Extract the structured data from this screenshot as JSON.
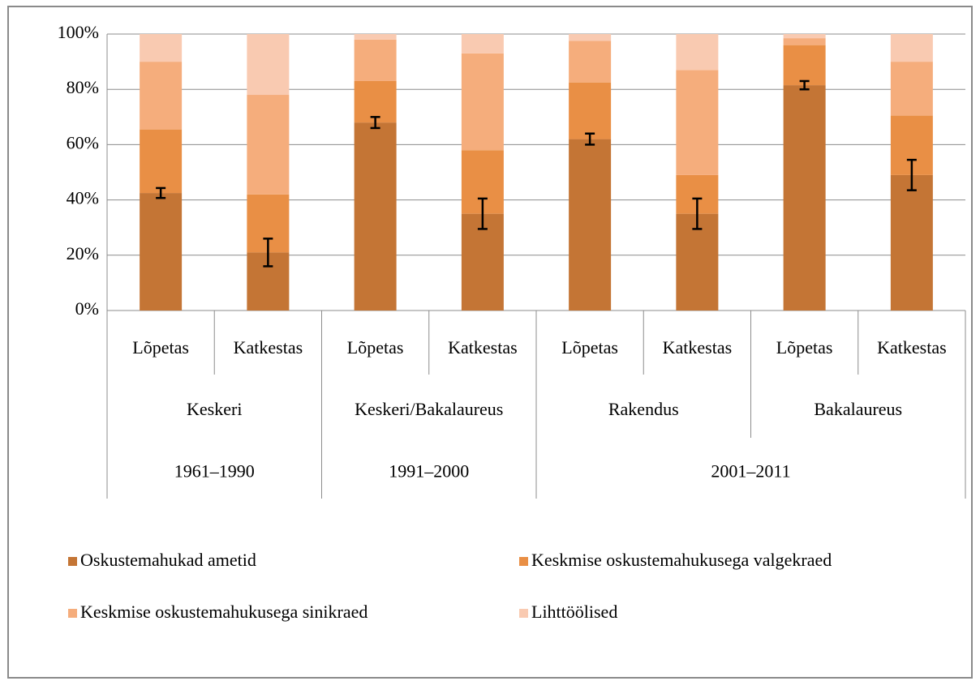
{
  "chart_data": {
    "type": "stacked_bar",
    "categories": [
      "Lõpetas",
      "Katkestas",
      "Lõpetas",
      "Katkestas",
      "Lõpetas",
      "Katkestas",
      "Lõpetas",
      "Katkestas"
    ],
    "groups": [
      [
        {
          "label": "Keskeri",
          "span": 2
        },
        {
          "label": "Keskeri/Bakalaureus",
          "span": 2
        },
        {
          "label": "Rakendus",
          "span": 2
        },
        {
          "label": "Bakalaureus",
          "span": 2
        }
      ],
      [
        {
          "label": "1961–1990",
          "span": 2
        },
        {
          "label": "1991–2000",
          "span": 2
        },
        {
          "label": "2001–2011",
          "span": 4
        }
      ]
    ],
    "series": [
      {
        "name": "Oskustemahukad ametid",
        "color": "#c47535",
        "values": [
          42.5,
          21,
          68,
          35,
          62,
          35,
          81.5,
          49
        ],
        "errors": [
          1.8,
          5,
          2,
          5.5,
          2,
          5.5,
          1.5,
          5.5
        ]
      },
      {
        "name": "Keskmise oskustemahukusega valgekraed",
        "color": "#e98f45",
        "values": [
          23,
          21,
          15,
          23,
          20.5,
          14,
          14.5,
          21.5
        ]
      },
      {
        "name": "Keskmise oskustemahukusega sinikraed",
        "color": "#f5ad7c",
        "values": [
          24.5,
          36,
          15,
          35,
          15,
          38,
          2.5,
          19.5
        ]
      },
      {
        "name": "Lihttöölised",
        "color": "#f9cab1",
        "values": [
          10,
          22,
          2,
          7,
          2.5,
          13,
          1.5,
          10
        ]
      }
    ],
    "ylim": [
      0,
      100
    ],
    "yticks": [
      {
        "value": 0,
        "label": "0%"
      },
      {
        "value": 20,
        "label": "20%"
      },
      {
        "value": 40,
        "label": "40%"
      },
      {
        "value": 60,
        "label": "60%"
      },
      {
        "value": 80,
        "label": "80%"
      },
      {
        "value": 100,
        "label": "100%"
      }
    ],
    "grid": true,
    "legend": "bottom"
  }
}
